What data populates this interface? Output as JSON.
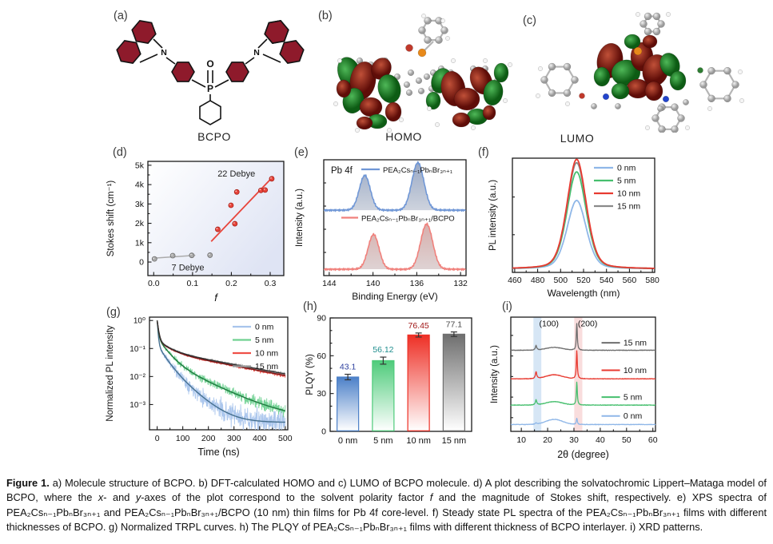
{
  "page": {
    "background": "#ffffff"
  },
  "panels": {
    "a": {
      "letter": "(a)",
      "caption_label": "BCPO"
    },
    "b": {
      "letter": "(b)",
      "caption_label": "HOMO"
    },
    "c": {
      "letter": "(c)",
      "caption_label": "LUMO"
    },
    "d": {
      "letter": "(d)"
    },
    "e": {
      "letter": "(e)"
    },
    "f": {
      "letter": "(f)"
    },
    "g": {
      "letter": "(g)"
    },
    "h": {
      "letter": "(h)"
    },
    "i": {
      "letter": "(i)"
    }
  },
  "caption": {
    "segments": [
      {
        "b": "Figure 1."
      },
      {
        "t": "  a) Molecule structure of BCPO. b) DFT-calculated HOMO and c) LUMO of BCPO molecule. d) A plot describing the solvatochromic Lippert–Mataga model of BCPO, where the "
      },
      {
        "i": "x"
      },
      {
        "t": "- and "
      },
      {
        "i": "y"
      },
      {
        "t": "-axes of the plot correspond to the solvent polarity factor "
      },
      {
        "i": "f"
      },
      {
        "t": " and the magnitude of Stokes shift, respectively. e) XPS spectra of PEA₂Csₙ₋₁PbₙBr₃ₙ₊₁ and PEA₂Csₙ₋₁PbₙBr₃ₙ₊₁/BCPO (10 nm) thin films for Pb 4f core-level. f) Steady state PL spectra of the PEA₂Csₙ₋₁PbₙBr₃ₙ₊₁ films with different thicknesses of BCPO. g) Normalized TRPL curves. h) The PLQY of PEA₂Csₙ₋₁PbₙBr₃ₙ₊₁ films with different thickness of BCPO interlayer. i) XRD patterns."
      }
    ]
  },
  "chart_data": [
    {
      "id": "d",
      "type": "scatter",
      "xlabel": "f",
      "ylabel": "Stokes shift (cm⁻¹)",
      "xlim": [
        -0.015,
        0.335
      ],
      "ylim": [
        -700,
        5200
      ],
      "x_ticks": [
        0.0,
        0.1,
        0.2,
        0.3
      ],
      "x_tick_labels": [
        "0.0",
        "0.1",
        "0.2",
        "0.3"
      ],
      "x_minor_ticks": [
        0.05,
        0.15,
        0.25
      ],
      "y_ticks": [
        0,
        1000,
        2000,
        3000,
        4000,
        5000
      ],
      "y_tick_labels": [
        "0",
        "1k",
        "2k",
        "3k",
        "4k",
        "5k"
      ],
      "series": [
        {
          "name": "7 Debye",
          "color": "#ababab",
          "edge": "#6e6e6e",
          "points": [
            [
              0.002,
              160
            ],
            [
              0.049,
              330
            ],
            [
              0.098,
              345
            ],
            [
              0.145,
              355
            ]
          ],
          "fit": [
            [
              -0.002,
              200
            ],
            [
              0.107,
              350
            ]
          ]
        },
        {
          "name": "22 Debye",
          "color": "#e8453c",
          "edge": "#a81f16",
          "points": [
            [
              0.165,
              1690
            ],
            [
              0.199,
              2930
            ],
            [
              0.209,
              1980
            ],
            [
              0.214,
              3620
            ],
            [
              0.276,
              3700
            ],
            [
              0.287,
              3720
            ],
            [
              0.304,
              4300
            ]
          ],
          "fit": [
            [
              0.148,
              1060
            ],
            [
              0.308,
              4430
            ]
          ]
        }
      ],
      "annotations": [
        {
          "text": "22 Debye",
          "x": 0.213,
          "y": 4420,
          "color": "#222222"
        },
        {
          "text": "7 Debye",
          "x": 0.088,
          "y": -430,
          "color": "#222222"
        }
      ],
      "bg_gradient": [
        "#ffffff",
        "#dfe4f4"
      ]
    },
    {
      "id": "e",
      "type": "line",
      "panel_label": "Pb 4f",
      "xlabel": "Binding Energy (eV)",
      "ylabel": "Intensity (a.u.)",
      "xlim": [
        144.5,
        131.5
      ],
      "x_ticks": [
        144,
        140,
        136,
        132
      ],
      "x_minor_ticks": [
        142,
        138,
        134
      ],
      "series": [
        {
          "name": "PEA₂Csₙ₋₁PbₙBr₃ₙ₊₁",
          "color": "#7097d6",
          "fill_top": "#8799bb",
          "fill_bottom": "#c7cdd8",
          "baseline": 0.565,
          "peaks": [
            {
              "mu": 140.75,
              "amp": 0.3,
              "sigma": 0.5
            },
            {
              "mu": 135.9,
              "amp": 0.41,
              "sigma": 0.55
            }
          ]
        },
        {
          "name": "PEA₂Csₙ₋₁PbₙBr₃ₙ₊₁/BCPO",
          "color": "#f0817c",
          "fill_top": "#cf9f9c",
          "fill_bottom": "#d9cccd",
          "baseline": 0.055,
          "peaks": [
            {
              "mu": 139.95,
              "amp": 0.3,
              "sigma": 0.5
            },
            {
              "mu": 135.1,
              "amp": 0.39,
              "sigma": 0.55
            }
          ]
        }
      ]
    },
    {
      "id": "f",
      "type": "line",
      "xlabel": "Wavelength (nm)",
      "ylabel": "PL intensity (a.u.)",
      "xlim": [
        458,
        582
      ],
      "x_ticks": [
        460,
        480,
        500,
        520,
        540,
        560,
        580
      ],
      "peak_nm": 514,
      "series": [
        {
          "name": "0 nm",
          "color": "#8fb7e8",
          "height": 0.6
        },
        {
          "name": "5 nm",
          "color": "#46bf6e",
          "height": 0.85
        },
        {
          "name": "10 nm",
          "color": "#e83a30",
          "height": 0.96
        },
        {
          "name": "15 nm",
          "color": "#8a8a8a",
          "height": 0.93
        }
      ],
      "draw_order": [
        0,
        1,
        3,
        2
      ]
    },
    {
      "id": "g",
      "type": "line",
      "yscale": "log",
      "xlabel": "Time (ns)",
      "ylabel": "Normalized PL intensity",
      "xlim": [
        -30,
        510
      ],
      "x_ticks": [
        0,
        100,
        200,
        300,
        400,
        500
      ],
      "ylim_exp": [
        -3.9,
        0.12
      ],
      "y_ticks_exp": [
        0,
        -1,
        -2,
        -3
      ],
      "y_tick_labels": [
        "10⁰",
        "10⁻¹",
        "10⁻²",
        "10⁻³"
      ],
      "series": [
        {
          "name": "0 nm",
          "color": "#a8c4ec",
          "fit_color": "#46708f",
          "decay": {
            "a": [
              0.86,
              0.1,
              0.04
            ],
            "tau": [
              3,
              25,
              55
            ],
            "c": 0.00023
          },
          "noise": 1.6
        },
        {
          "name": "5 nm",
          "color": "#6fd191",
          "fit_color": "#1f7a3f",
          "decay": {
            "a": [
              0.75,
              0.2,
              0.045
            ],
            "tau": [
              4,
              30,
              100
            ],
            "c": 0.0003
          },
          "noise": 1.0
        },
        {
          "name": "10 nm",
          "color": "#ef5048",
          "fit_color": "#7a1515",
          "decay": {
            "a": [
              0.79,
              0.12,
              0.08
            ],
            "tau": [
              5,
              40,
              250
            ],
            "c": 0.0
          },
          "noise": 0.55
        },
        {
          "name": "15 nm",
          "color": "#9a9a9a",
          "fit_color": "#333333",
          "decay": {
            "a": [
              0.78,
              0.12,
              0.085
            ],
            "tau": [
              5,
              40,
              260
            ],
            "c": 0.0
          },
          "noise": 0.5
        }
      ]
    },
    {
      "id": "h",
      "type": "bar",
      "ylabel": "PLQY (%)",
      "ylim": [
        0,
        90
      ],
      "y_ticks": [
        0,
        30,
        60,
        90
      ],
      "categories": [
        "0 nm",
        "5 nm",
        "10 nm",
        "15 nm"
      ],
      "values": [
        43.1,
        56.12,
        76.45,
        77.1
      ],
      "errors": [
        2.2,
        2.8,
        1.6,
        1.8
      ],
      "value_labels": [
        "43.1",
        "56.12",
        "76.45",
        "77.1"
      ],
      "bar_colors": [
        "#4c80c8",
        "#4ecb7a",
        "#ee2f25",
        "#6e6e6e"
      ],
      "label_colors": [
        "#2c3f9e",
        "#1f8e8e",
        "#a01616",
        "#4a4a4a"
      ]
    },
    {
      "id": "i",
      "type": "line",
      "xlabel": "2θ (degree)",
      "ylabel": "Intensity (a.u.)",
      "xlim": [
        6,
        61
      ],
      "x_ticks": [
        10,
        20,
        30,
        40,
        50,
        60
      ],
      "peak_labels": [
        {
          "text": "(100)",
          "x": 20.5,
          "y": 0.94
        },
        {
          "text": "(200)",
          "x": 35.2,
          "y": 0.94
        }
      ],
      "bands": [
        {
          "x0": 14.6,
          "x1": 17.6,
          "color": "#d6e6f5"
        },
        {
          "x0": 30.1,
          "x1": 33.2,
          "color": "#f9dddd"
        }
      ],
      "peak100_x": 15.6,
      "peak200_x": 31.1,
      "hump_x": 22.5,
      "series": [
        {
          "name": "0 nm",
          "color": "#8fb7e8",
          "offset": 0.06,
          "p100": 0.012,
          "hump": 0.045,
          "p200": 0.055,
          "legend_y": 0.135
        },
        {
          "name": "5 nm",
          "color": "#46bf6e",
          "offset": 0.23,
          "p100": 0.045,
          "hump": 0.03,
          "p200": 0.2,
          "legend_y": 0.3
        },
        {
          "name": "10 nm",
          "color": "#e83a30",
          "offset": 0.46,
          "p100": 0.06,
          "hump": 0.035,
          "p200": 0.245,
          "legend_y": 0.535
        },
        {
          "name": "15 nm",
          "color": "#6e6e6e",
          "offset": 0.71,
          "p100": 0.04,
          "hump": 0.025,
          "p200": 0.235,
          "legend_y": 0.775
        }
      ]
    }
  ]
}
